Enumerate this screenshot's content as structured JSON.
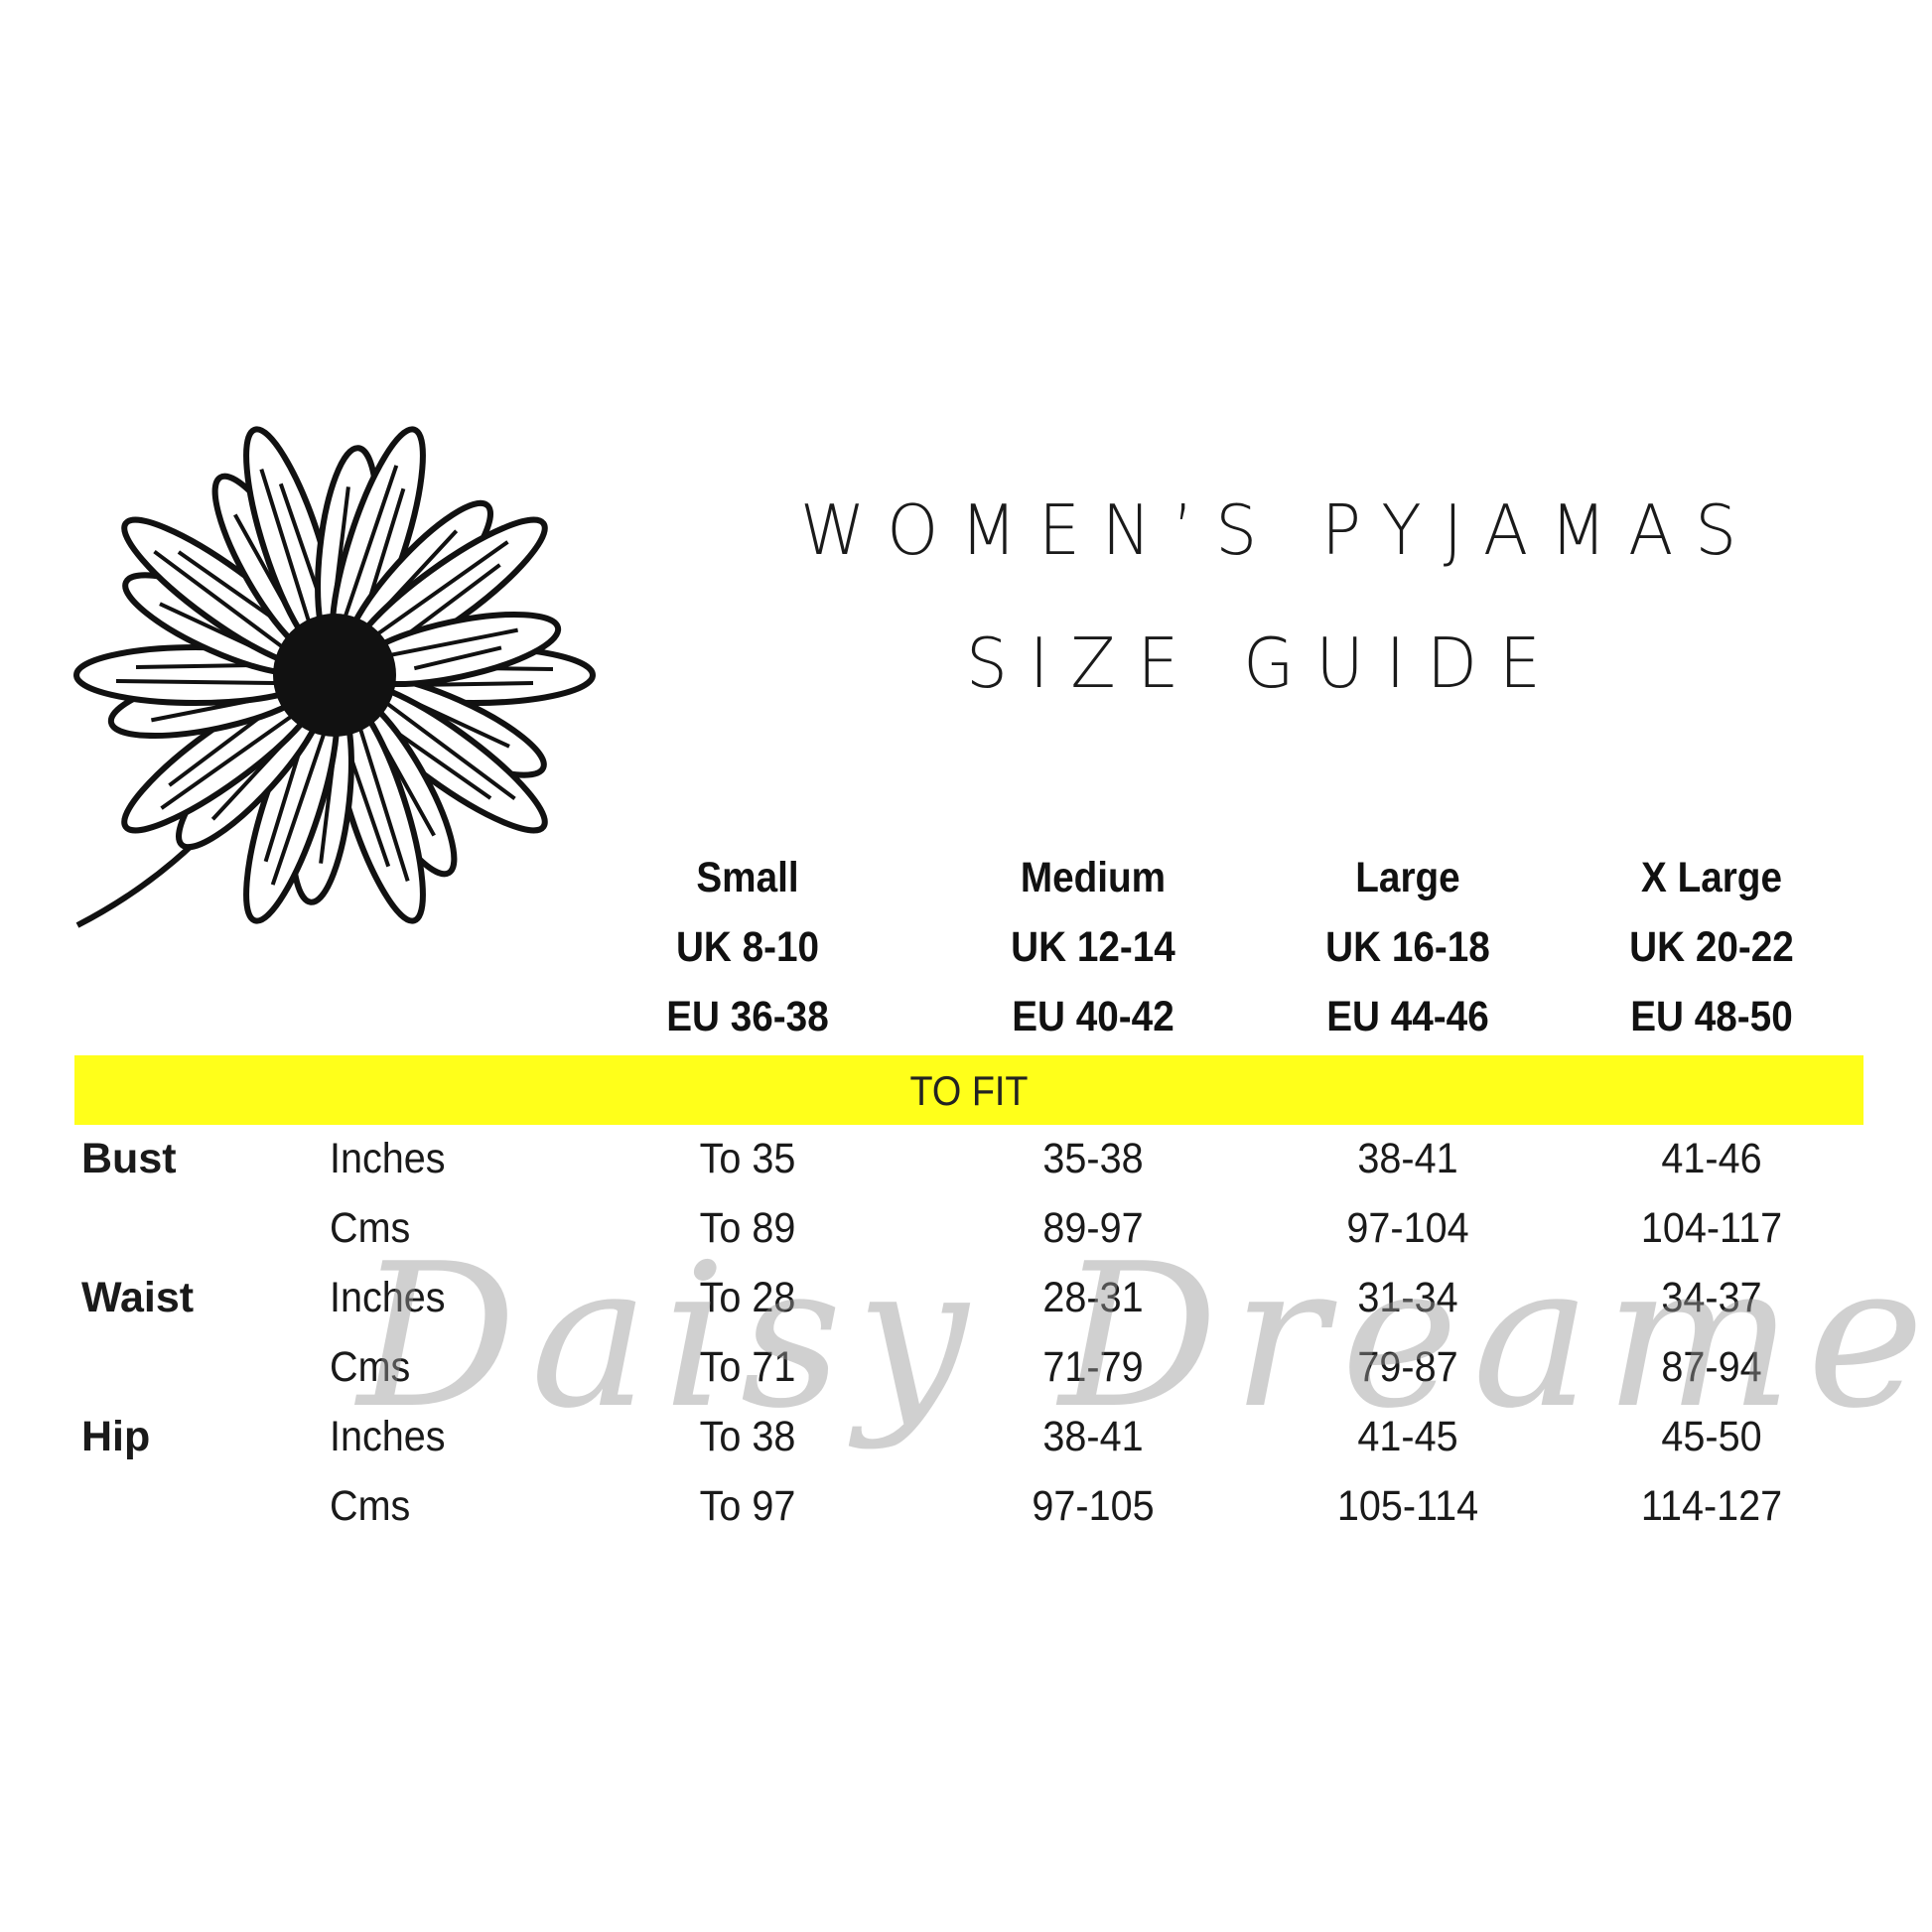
{
  "title": {
    "line1": "WOMEN’S PYJAMAS",
    "line2": "SIZE GUIDE"
  },
  "sizes": [
    {
      "name": "Small",
      "uk": "UK 8-10",
      "eu": "EU 36-38"
    },
    {
      "name": "Medium",
      "uk": "UK 12-14",
      "eu": "EU 40-42"
    },
    {
      "name": "Large",
      "uk": "UK 16-18",
      "eu": "EU 44-46"
    },
    {
      "name": "X Large",
      "uk": "UK 20-22",
      "eu": "EU 48-50"
    }
  ],
  "band": {
    "label": "TO FIT",
    "color": "#ffff1a"
  },
  "rows": [
    {
      "measure": "Bust",
      "unit": "Inches",
      "values": [
        "To 35",
        "35-38",
        "38-41",
        "41-46"
      ]
    },
    {
      "measure": "",
      "unit": "Cms",
      "values": [
        "To 89",
        "89-97",
        "97-104",
        "104-117"
      ]
    },
    {
      "measure": "Waist",
      "unit": "Inches",
      "values": [
        "To 28",
        "28-31",
        "31-34",
        "34-37"
      ]
    },
    {
      "measure": "",
      "unit": "Cms",
      "values": [
        "To 71",
        "71-79",
        "79-87",
        "87-94"
      ]
    },
    {
      "measure": "Hip",
      "unit": "Inches",
      "values": [
        "To 38",
        "38-41",
        "41-45",
        "45-50"
      ]
    },
    {
      "measure": "",
      "unit": "Cms",
      "values": [
        "To 97",
        "97-105",
        "105-114",
        "114-127"
      ]
    }
  ],
  "watermark": {
    "text": "Daisy Dreamer"
  },
  "illustration": {
    "icon": "daisy-flower-icon"
  }
}
